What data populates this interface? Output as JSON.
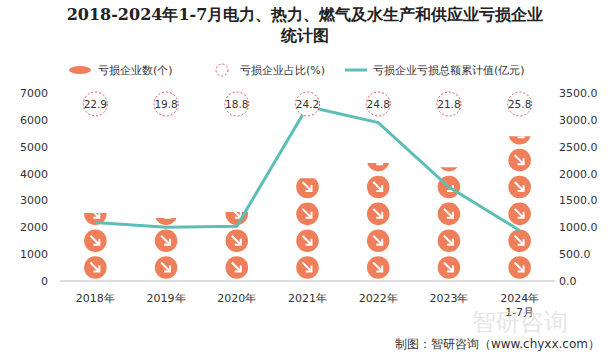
{
  "chart_data": {
    "type": "bar",
    "title": "2018-2024年1-7月电力、热力、燃气及水生产和供应业亏损企业统计图",
    "categories": [
      "2018年",
      "2019年",
      "2020年",
      "2021年",
      "2022年",
      "2023年",
      "2024年\n1-7月"
    ],
    "series": [
      {
        "name": "亏损企业数(个)",
        "type": "bar",
        "color": "#ef7f5a",
        "values": [
          2530,
          2350,
          2570,
          3830,
          4390,
          4240,
          5390
        ]
      },
      {
        "name": "亏损企业占比(%)",
        "type": "text",
        "color": "#e05050",
        "values": [
          22.9,
          19.8,
          18.8,
          24.2,
          24.8,
          21.8,
          25.8
        ]
      },
      {
        "name": "亏损企业亏损总额累计值(亿元)",
        "type": "line",
        "axis": "y2",
        "color": "#5bbfb5",
        "values": [
          1090,
          1000,
          1020,
          3250,
          2950,
          1750,
          940
        ]
      }
    ],
    "ylim": [
      0,
      7000
    ],
    "yticks": [
      0,
      1000,
      2000,
      3000,
      4000,
      5000,
      6000,
      7000
    ],
    "y2lim": [
      0,
      3500
    ],
    "y2ticks": [
      {
        "value": 0,
        "label": "0.0"
      },
      {
        "value": 500,
        "label": "500.0"
      },
      {
        "value": 1000,
        "label": "1000.0"
      },
      {
        "value": 1500,
        "label": "1500.0"
      },
      {
        "value": 2000,
        "label": "2000.0"
      },
      {
        "value": 2500,
        "label": "2500.0"
      },
      {
        "value": 3000,
        "label": "3000.0"
      },
      {
        "value": 3500,
        "label": "3500.0"
      }
    ],
    "grid": false,
    "legend": "top",
    "source": "制图：智研咨询（www.chyxx.com）",
    "watermark": "智研咨询"
  }
}
